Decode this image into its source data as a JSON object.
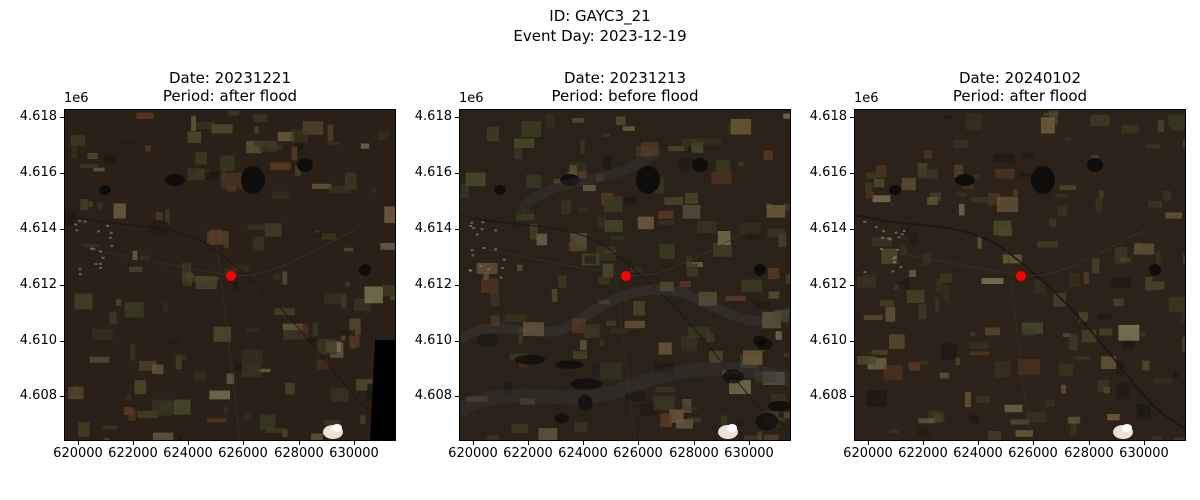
{
  "figure": {
    "id_line": "ID: GAYC3_21",
    "event_line": "Event Day: 2023-12-19"
  },
  "axes": {
    "y_offset_label": "1e6",
    "y_ticks": [
      "4.618",
      "4.616",
      "4.614",
      "4.612",
      "4.610",
      "4.608"
    ],
    "x_ticks": [
      "620000",
      "622000",
      "624000",
      "626000",
      "628000",
      "630000"
    ]
  },
  "panels": [
    {
      "date_line": "Date: 20231221",
      "period_line": "Period: after flood"
    },
    {
      "date_line": "Date: 20231213",
      "period_line": "Period: before flood"
    },
    {
      "date_line": "Date: 20240102",
      "period_line": "Period: after flood"
    }
  ],
  "colors": {
    "marker": "#ff0000",
    "terrain": "#2a2119"
  }
}
